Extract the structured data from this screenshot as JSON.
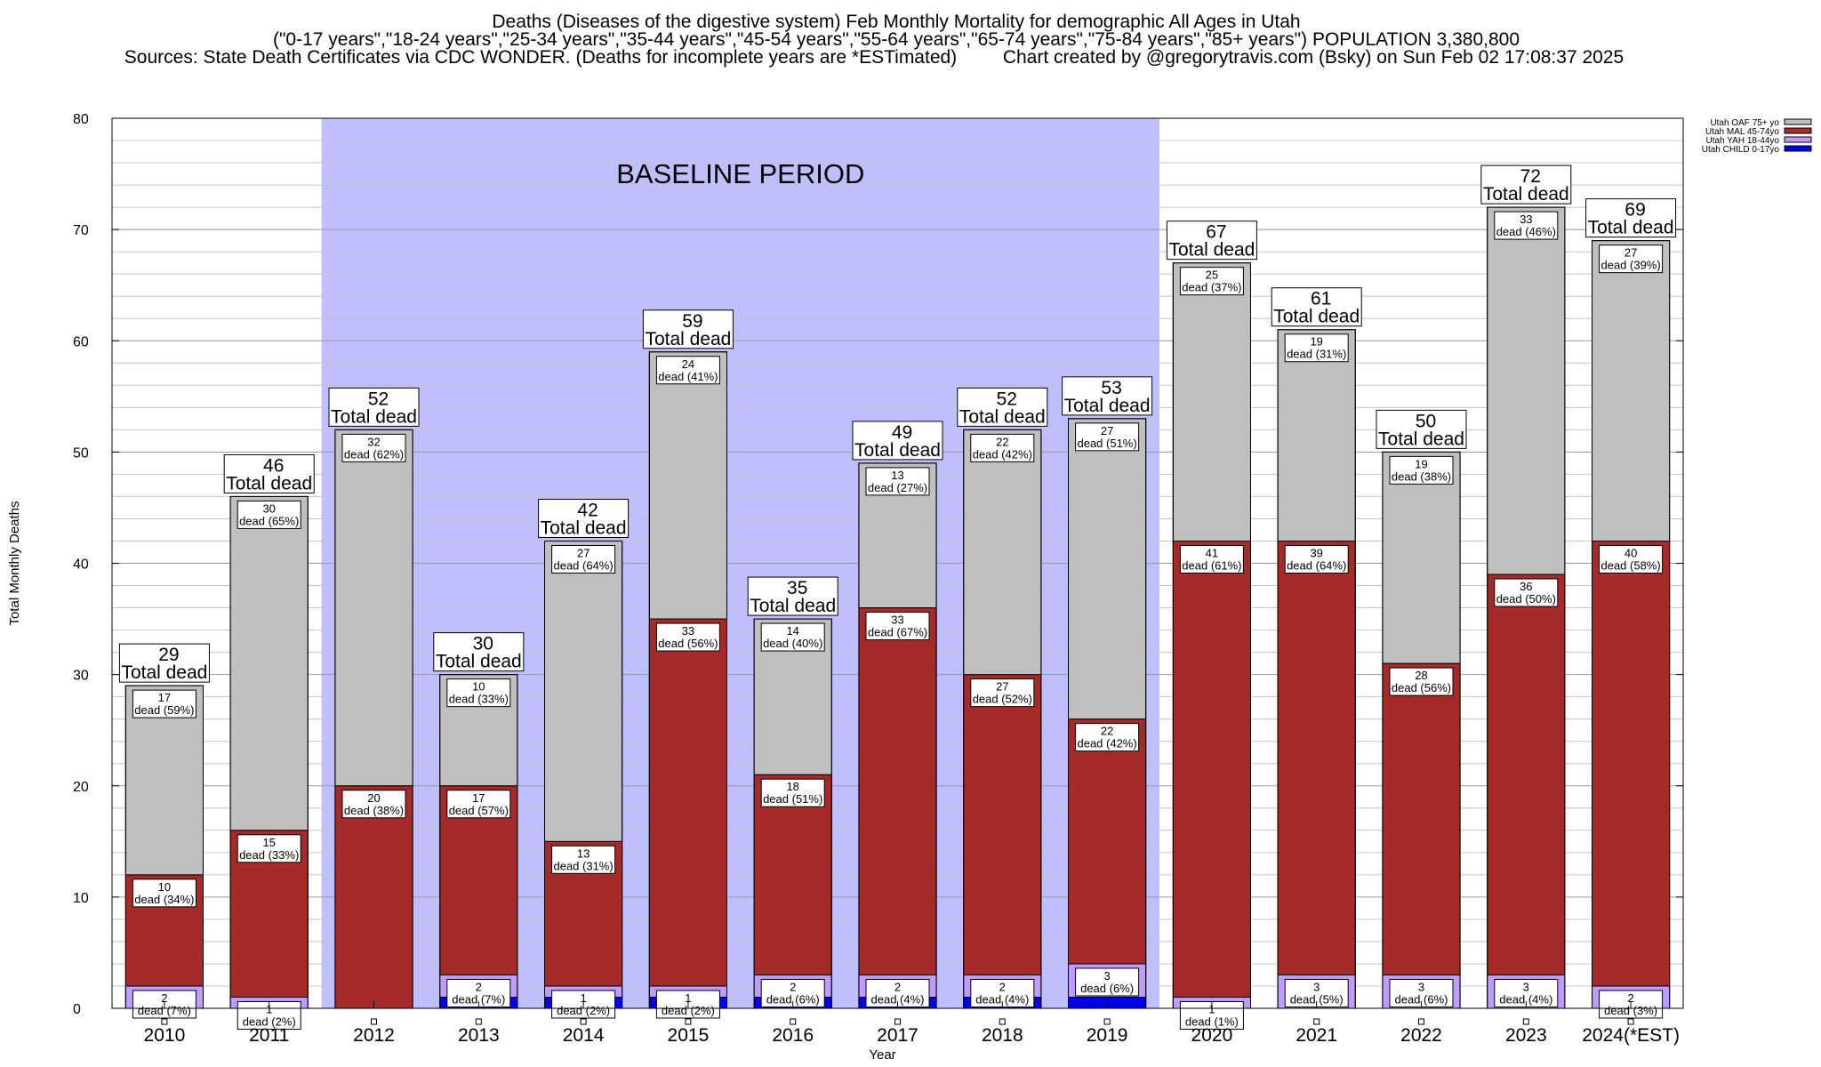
{
  "title_lines": [
    "Deaths (Diseases of the digestive system) Feb Monthly Mortality for demographic All Ages in Utah",
    "(\"0-17 years\",\"18-24 years\",\"25-34 years\",\"35-44 years\",\"45-54 years\",\"55-64 years\",\"65-74 years\",\"75-84 years\",\"85+ years\") POPULATION 3,380,800",
    "Sources: State Death Certificates via CDC WONDER. (Deaths for incomplete years are *ESTimated)",
    "Chart created by @gregorytravis.com (Bsky) on Sun Feb 02 17:08:37 2025"
  ],
  "colors": {
    "child": "#0000ee",
    "yah": "#bf9cff",
    "mal": "#a52a2a",
    "oaf": "#bfbfbf",
    "baseline": "#bfbfff"
  },
  "chart_data": {
    "type": "bar",
    "stacked": true,
    "xlabel": "Year",
    "ylabel": "Total Monthly Deaths",
    "ylim": [
      0,
      80
    ],
    "yticks": [
      0,
      10,
      20,
      30,
      40,
      50,
      60,
      70,
      80
    ],
    "grid": "horizontal",
    "legend_position": "top-right",
    "categories": [
      "2010",
      "2011",
      "2012",
      "2013",
      "2014",
      "2015",
      "2016",
      "2017",
      "2018",
      "2019",
      "2020",
      "2021",
      "2022",
      "2023",
      "2024(*EST)"
    ],
    "series": [
      {
        "name": "Utah CHILD 0-17yo",
        "key": "child",
        "values": [
          0,
          0,
          0,
          1,
          1,
          1,
          1,
          1,
          1,
          1,
          0,
          0,
          0,
          0,
          0
        ]
      },
      {
        "name": "Utah YAH 18-44yo",
        "key": "yah",
        "values": [
          2,
          1,
          0,
          2,
          1,
          1,
          2,
          2,
          2,
          3,
          1,
          3,
          3,
          3,
          2
        ]
      },
      {
        "name": "Utah MAL 45-74yo",
        "key": "mal",
        "values": [
          10,
          15,
          20,
          17,
          13,
          33,
          18,
          33,
          27,
          22,
          41,
          39,
          28,
          36,
          40
        ]
      },
      {
        "name": "Utah OAF 75+ yo",
        "key": "oaf",
        "values": [
          17,
          30,
          32,
          10,
          27,
          24,
          14,
          13,
          22,
          27,
          25,
          19,
          19,
          33,
          27
        ]
      }
    ],
    "totals": [
      29,
      46,
      52,
      30,
      42,
      59,
      35,
      49,
      52,
      53,
      67,
      61,
      50,
      72,
      69
    ],
    "total_suffix": "Total dead",
    "segment_labels": {
      "yah": [
        "2\ndead (7%)",
        "1\ndead (2%)",
        "",
        "2\ndead (7%)",
        "1\ndead (2%)",
        "1\ndead (2%)",
        "2\ndead (6%)",
        "2\ndead (4%)",
        "2\ndead (4%)",
        "3\ndead (6%)",
        "1\ndead (1%)",
        "3\ndead (5%)",
        "3\ndead (6%)",
        "3\ndead (4%)",
        "2\ndead (3%)"
      ],
      "mal": [
        "10\ndead (34%)",
        "15\ndead (33%)",
        "20\ndead (38%)",
        "17\ndead (57%)",
        "13\ndead (31%)",
        "33\ndead (56%)",
        "18\ndead (51%)",
        "33\ndead (67%)",
        "27\ndead (52%)",
        "22\ndead (42%)",
        "41\ndead (61%)",
        "39\ndead (64%)",
        "28\ndead (56%)",
        "36\ndead (50%)",
        "40\ndead (58%)"
      ],
      "oaf": [
        "17\ndead (59%)",
        "30\ndead (65%)",
        "32\ndead (62%)",
        "10\ndead (33%)",
        "27\ndead (64%)",
        "24\ndead (41%)",
        "14\ndead (40%)",
        "13\ndead (27%)",
        "22\ndead (42%)",
        "27\ndead (51%)",
        "25\ndead (37%)",
        "19\ndead (31%)",
        "19\ndead (38%)",
        "33\ndead (46%)",
        "27\ndead (39%)"
      ]
    },
    "baseline": {
      "label": "BASELINE PERIOD",
      "from": "2012",
      "to": "2019"
    }
  }
}
